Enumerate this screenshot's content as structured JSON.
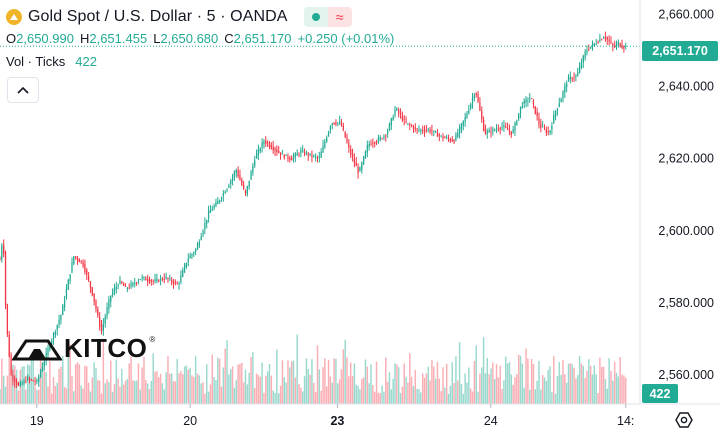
{
  "header": {
    "symbol": "Gold Spot / U.S. Dollar · 5 · OANDA",
    "coin_icon": "gold-coin-icon",
    "status_icon": "market-open-dot-icon",
    "wave_icon": "wave-icon",
    "wave_glyph": "≈"
  },
  "ohlc": {
    "o_label": "O",
    "o_value": "2,650.990",
    "h_label": "H",
    "h_value": "2,651.455",
    "l_label": "L",
    "l_value": "2,650.680",
    "c_label": "C",
    "c_value": "2,651.170",
    "change": "+0.250 (+0.01%)"
  },
  "volume": {
    "label": "Vol · Ticks",
    "value": "422"
  },
  "price_tag": "2,651.170",
  "vol_tag": "422",
  "logo": {
    "text": "KITCO",
    "reg": "®"
  },
  "colors": {
    "up": "#22ab94",
    "down": "#f23645",
    "accent": "#22ab94",
    "grid": "#f0f3fa"
  },
  "chart_data": {
    "type": "line",
    "title": "",
    "xlabel": "",
    "ylabel": "",
    "x_tick_labels": [
      "19",
      "20",
      "23",
      "24",
      "14:"
    ],
    "x_tick_positions": [
      0.6,
      3.1,
      5.5,
      8.0,
      10.2
    ],
    "y_ticks": [
      2560,
      2580,
      2600,
      2620,
      2640,
      2660
    ],
    "y_tick_labels": [
      "2,560.000",
      "2,580.000",
      "2,600.000",
      "2,620.000",
      "2,640.000",
      "2,660.000"
    ],
    "ylim": [
      2552,
      2664
    ],
    "xlim": [
      0,
      10.4
    ],
    "last_price": 2651.17,
    "series": [
      {
        "x": [
          0,
          0.05,
          0.1,
          0.18,
          0.3,
          0.45,
          0.6,
          0.8,
          1.0,
          1.2,
          1.35,
          1.5,
          1.65,
          1.8,
          1.95,
          2.05,
          2.15,
          2.3,
          2.5,
          2.7,
          2.9,
          3.05,
          3.2,
          3.4,
          3.55,
          3.7,
          3.85,
          4.0,
          4.15,
          4.3,
          4.45,
          4.6,
          4.75,
          4.9,
          5.05,
          5.2,
          5.4,
          5.55,
          5.7,
          5.85,
          6.0,
          6.15,
          6.3,
          6.45,
          6.6,
          6.8,
          7.0,
          7.2,
          7.4,
          7.6,
          7.75,
          7.9,
          8.05,
          8.2,
          8.35,
          8.5,
          8.65,
          8.8,
          8.95,
          9.05,
          9.15,
          9.25,
          9.4,
          9.55,
          9.7,
          9.85,
          10.0,
          10.08,
          10.15,
          10.2
        ],
        "values": [
          2592,
          2599,
          2575,
          2560,
          2557,
          2559,
          2558,
          2568,
          2577,
          2593,
          2591,
          2583,
          2572,
          2582,
          2586,
          2584,
          2585,
          2587,
          2586,
          2587,
          2585,
          2592,
          2595,
          2605,
          2608,
          2612,
          2617,
          2610,
          2620,
          2625,
          2623,
          2621,
          2620,
          2622,
          2621,
          2620,
          2630,
          2630,
          2622,
          2616,
          2624,
          2625,
          2627,
          2634,
          2630,
          2628,
          2628,
          2626,
          2625,
          2632,
          2639,
          2627,
          2628,
          2629,
          2627,
          2635,
          2637,
          2629,
          2627,
          2633,
          2637,
          2642,
          2643,
          2650,
          2652,
          2654,
          2651,
          2652,
          2651,
          2651.17
        ]
      }
    ],
    "volume_series": [
      {
        "name": "Vol · Ticks",
        "x_range": [
          0,
          10.2
        ],
        "last_value": 422
      }
    ],
    "grid": false
  }
}
